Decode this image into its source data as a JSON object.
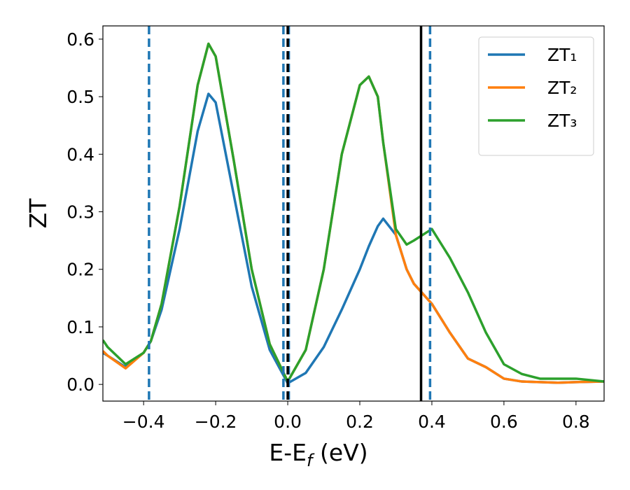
{
  "chart_data": {
    "type": "line",
    "xlabel": [
      "E-E",
      "f",
      " (eV)"
    ],
    "ylabel": "ZT",
    "x": [
      -0.513,
      -0.5,
      -0.45,
      -0.4,
      -0.38,
      -0.35,
      -0.3,
      -0.25,
      -0.22,
      -0.2,
      -0.15,
      -0.1,
      -0.05,
      0,
      0.05,
      0.1,
      0.15,
      0.2,
      0.225,
      0.25,
      0.265,
      0.3,
      0.33,
      0.35,
      0.4,
      0.45,
      0.5,
      0.55,
      0.6,
      0.65,
      0.7,
      0.75,
      0.8,
      0.878
    ],
    "series": [
      {
        "name": "ZT₁",
        "color": "#1f77b4",
        "values": [
          0.055,
          0.05,
          0.03,
          0.055,
          0.075,
          0.13,
          0.27,
          0.44,
          0.505,
          0.49,
          0.33,
          0.17,
          0.06,
          0.002,
          0.02,
          0.065,
          0.13,
          0.2,
          0.24,
          0.275,
          0.288,
          0.26,
          0.2,
          0.175,
          0.14,
          0.09,
          0.045,
          0.03,
          0.01,
          0.005,
          0.004,
          0.003,
          0.004,
          0.005
        ]
      },
      {
        "name": "ZT₂",
        "color": "#ff7f0e",
        "values": [
          0.058,
          0.05,
          0.028,
          0.055,
          0.075,
          0.14,
          0.31,
          0.52,
          0.592,
          0.57,
          0.39,
          0.2,
          0.07,
          0.005,
          0.06,
          0.2,
          0.4,
          0.52,
          0.535,
          0.5,
          0.42,
          0.26,
          0.2,
          0.175,
          0.14,
          0.09,
          0.045,
          0.03,
          0.01,
          0.005,
          0.004,
          0.003,
          0.004,
          0.005
        ]
      },
      {
        "name": "ZT₃",
        "color": "#2ca02c",
        "values": [
          0.077,
          0.065,
          0.035,
          0.055,
          0.075,
          0.14,
          0.31,
          0.52,
          0.592,
          0.57,
          0.39,
          0.2,
          0.07,
          0.005,
          0.06,
          0.2,
          0.4,
          0.52,
          0.535,
          0.5,
          0.42,
          0.27,
          0.243,
          0.25,
          0.27,
          0.22,
          0.16,
          0.09,
          0.035,
          0.018,
          0.01,
          0.01,
          0.01,
          0.005
        ]
      }
    ],
    "vlines": [
      {
        "x": -0.385,
        "color": "#1f77b4",
        "style": "dashed"
      },
      {
        "x": -0.012,
        "color": "#1f77b4",
        "style": "dashed"
      },
      {
        "x": 0.003,
        "color": "#1f77b4",
        "style": "dashed"
      },
      {
        "x": 0,
        "color": "#000000",
        "style": "dashed"
      },
      {
        "x": 0.37,
        "color": "#000000",
        "style": "solid"
      },
      {
        "x": 0.395,
        "color": "#1f77b4",
        "style": "dashed"
      }
    ],
    "xlim": [
      -0.513,
      0.878
    ],
    "ylim": [
      -0.029,
      0.623
    ],
    "xticks": [
      {
        "value": -0.4,
        "label": "−0.4"
      },
      {
        "value": -0.2,
        "label": "−0.2"
      },
      {
        "value": 0,
        "label": "0.0"
      },
      0.2,
      0.4,
      0.6,
      0.8
    ],
    "yticks": [
      {
        "value": 0,
        "label": "0.0"
      },
      0.1,
      0.2,
      0.3,
      0.4,
      0.5,
      0.6
    ],
    "legend": "upper right"
  }
}
